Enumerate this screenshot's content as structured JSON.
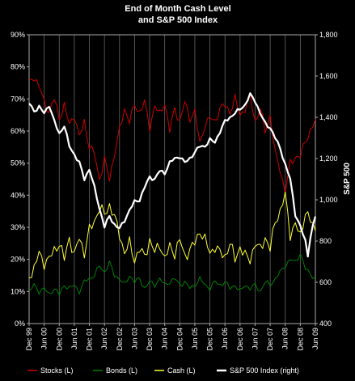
{
  "chart_data": {
    "type": "line",
    "title_line1": "End of Month Cash Level",
    "title_line2": "and S&P 500 Index",
    "xlabel": "",
    "ylabel_left": "",
    "ylabel_right": "S&P 500",
    "left_axis": {
      "min": 0,
      "max": 90,
      "step": 10,
      "suffix": "%"
    },
    "right_axis": {
      "min": 400,
      "max": 1800,
      "step": 200
    },
    "x_ticks": [
      "Dec 99",
      "Jun 00",
      "Dec 00",
      "Jun 01",
      "Dec 01",
      "Jun 02",
      "Dec 02",
      "Jun 03",
      "Dec 03",
      "Jun 04",
      "Dec 04",
      "Jun 05",
      "Dec 05",
      "Jun 06",
      "Dec 06",
      "Jun 07",
      "Dec 07",
      "Jun 08",
      "Dec 08",
      "Jun 09"
    ],
    "grid": "vertical",
    "legend_position": "bottom",
    "series": [
      {
        "name": "Stocks (L)",
        "color": "#cc0000",
        "axis": "left",
        "keypoints": [
          [
            0,
            75
          ],
          [
            2,
            77
          ],
          [
            4,
            74
          ],
          [
            6,
            69
          ],
          [
            8,
            66
          ],
          [
            10,
            70
          ],
          [
            12,
            64
          ],
          [
            14,
            68
          ],
          [
            16,
            62
          ],
          [
            18,
            65
          ],
          [
            20,
            58
          ],
          [
            22,
            63
          ],
          [
            24,
            55
          ],
          [
            26,
            53
          ],
          [
            28,
            45
          ],
          [
            30,
            51
          ],
          [
            32,
            45
          ],
          [
            34,
            53
          ],
          [
            36,
            60
          ],
          [
            38,
            67
          ],
          [
            40,
            63
          ],
          [
            42,
            68
          ],
          [
            44,
            66
          ],
          [
            46,
            69
          ],
          [
            48,
            61
          ],
          [
            50,
            68
          ],
          [
            52,
            65
          ],
          [
            54,
            69
          ],
          [
            56,
            60
          ],
          [
            58,
            67
          ],
          [
            60,
            63
          ],
          [
            62,
            69
          ],
          [
            64,
            64
          ],
          [
            66,
            66
          ],
          [
            68,
            56
          ],
          [
            70,
            62
          ],
          [
            72,
            64
          ],
          [
            74,
            63
          ],
          [
            76,
            67
          ],
          [
            78,
            68
          ],
          [
            80,
            66
          ],
          [
            82,
            70
          ],
          [
            84,
            65
          ],
          [
            86,
            67
          ],
          [
            88,
            71
          ],
          [
            90,
            63
          ],
          [
            92,
            67
          ],
          [
            94,
            60
          ],
          [
            96,
            65
          ],
          [
            98,
            53
          ],
          [
            100,
            48
          ],
          [
            102,
            41
          ],
          [
            104,
            50
          ],
          [
            106,
            52
          ],
          [
            108,
            52
          ],
          [
            110,
            57
          ],
          [
            114,
            63
          ]
        ]
      },
      {
        "name": "Bonds (L)",
        "color": "#008000",
        "axis": "left",
        "keypoints": [
          [
            0,
            10
          ],
          [
            2,
            12
          ],
          [
            4,
            10
          ],
          [
            6,
            11
          ],
          [
            8,
            9
          ],
          [
            10,
            11
          ],
          [
            12,
            9
          ],
          [
            14,
            12
          ],
          [
            16,
            11
          ],
          [
            18,
            12
          ],
          [
            20,
            10
          ],
          [
            22,
            13
          ],
          [
            24,
            14
          ],
          [
            26,
            15
          ],
          [
            28,
            18
          ],
          [
            30,
            16
          ],
          [
            32,
            19
          ],
          [
            34,
            15
          ],
          [
            36,
            14
          ],
          [
            38,
            12
          ],
          [
            40,
            15
          ],
          [
            42,
            13
          ],
          [
            44,
            14
          ],
          [
            46,
            11
          ],
          [
            48,
            13
          ],
          [
            50,
            12
          ],
          [
            52,
            14
          ],
          [
            54,
            12
          ],
          [
            56,
            13
          ],
          [
            58,
            14
          ],
          [
            60,
            12
          ],
          [
            62,
            13
          ],
          [
            64,
            11
          ],
          [
            66,
            12
          ],
          [
            68,
            14
          ],
          [
            70,
            12
          ],
          [
            72,
            11
          ],
          [
            74,
            13
          ],
          [
            76,
            12
          ],
          [
            78,
            13
          ],
          [
            80,
            11
          ],
          [
            82,
            12
          ],
          [
            84,
            10
          ],
          [
            86,
            12
          ],
          [
            88,
            11
          ],
          [
            90,
            12
          ],
          [
            92,
            10
          ],
          [
            94,
            13
          ],
          [
            96,
            12
          ],
          [
            98,
            14
          ],
          [
            100,
            16
          ],
          [
            102,
            18
          ],
          [
            104,
            20
          ],
          [
            106,
            19
          ],
          [
            108,
            22
          ],
          [
            110,
            17
          ],
          [
            114,
            14
          ]
        ]
      },
      {
        "name": "Cash (L)",
        "color": "#ffff33",
        "axis": "left",
        "keypoints": [
          [
            0,
            15
          ],
          [
            2,
            17
          ],
          [
            4,
            22
          ],
          [
            6,
            19
          ],
          [
            8,
            20
          ],
          [
            10,
            23
          ],
          [
            12,
            25
          ],
          [
            14,
            20
          ],
          [
            16,
            27
          ],
          [
            18,
            21
          ],
          [
            20,
            27
          ],
          [
            22,
            22
          ],
          [
            24,
            29
          ],
          [
            26,
            32
          ],
          [
            28,
            36
          ],
          [
            30,
            34
          ],
          [
            32,
            37
          ],
          [
            34,
            33
          ],
          [
            36,
            28
          ],
          [
            38,
            22
          ],
          [
            40,
            25
          ],
          [
            42,
            20
          ],
          [
            44,
            23
          ],
          [
            46,
            21
          ],
          [
            48,
            26
          ],
          [
            50,
            22
          ],
          [
            52,
            25
          ],
          [
            54,
            20
          ],
          [
            56,
            24
          ],
          [
            58,
            22
          ],
          [
            60,
            26
          ],
          [
            62,
            21
          ],
          [
            64,
            23
          ],
          [
            66,
            25
          ],
          [
            68,
            29
          ],
          [
            70,
            26
          ],
          [
            72,
            22
          ],
          [
            74,
            24
          ],
          [
            76,
            22
          ],
          [
            78,
            21
          ],
          [
            80,
            25
          ],
          [
            82,
            20
          ],
          [
            84,
            24
          ],
          [
            86,
            21
          ],
          [
            88,
            20
          ],
          [
            90,
            25
          ],
          [
            92,
            23
          ],
          [
            94,
            27
          ],
          [
            96,
            23
          ],
          [
            98,
            32
          ],
          [
            100,
            35
          ],
          [
            102,
            40
          ],
          [
            104,
            28
          ],
          [
            106,
            31
          ],
          [
            108,
            27
          ],
          [
            110,
            35
          ],
          [
            114,
            29
          ]
        ]
      },
      {
        "name": "S&P 500 Index (right)",
        "color": "#ffffff",
        "axis": "right",
        "keypoints": [
          [
            0,
            1469
          ],
          [
            2,
            1430
          ],
          [
            4,
            1450
          ],
          [
            6,
            1420
          ],
          [
            8,
            1460
          ],
          [
            10,
            1380
          ],
          [
            12,
            1320
          ],
          [
            14,
            1360
          ],
          [
            16,
            1260
          ],
          [
            18,
            1220
          ],
          [
            20,
            1180
          ],
          [
            22,
            1100
          ],
          [
            24,
            1150
          ],
          [
            26,
            1060
          ],
          [
            28,
            960
          ],
          [
            30,
            870
          ],
          [
            32,
            920
          ],
          [
            34,
            880
          ],
          [
            36,
            860
          ],
          [
            38,
            900
          ],
          [
            40,
            950
          ],
          [
            42,
            990
          ],
          [
            44,
            1000
          ],
          [
            46,
            1060
          ],
          [
            48,
            1110
          ],
          [
            50,
            1100
          ],
          [
            52,
            1140
          ],
          [
            54,
            1130
          ],
          [
            56,
            1180
          ],
          [
            58,
            1200
          ],
          [
            60,
            1210
          ],
          [
            62,
            1180
          ],
          [
            64,
            1200
          ],
          [
            66,
            1230
          ],
          [
            68,
            1260
          ],
          [
            70,
            1260
          ],
          [
            72,
            1290
          ],
          [
            74,
            1280
          ],
          [
            76,
            1330
          ],
          [
            78,
            1380
          ],
          [
            80,
            1400
          ],
          [
            82,
            1420
          ],
          [
            84,
            1440
          ],
          [
            86,
            1460
          ],
          [
            88,
            1510
          ],
          [
            90,
            1480
          ],
          [
            92,
            1420
          ],
          [
            94,
            1370
          ],
          [
            96,
            1350
          ],
          [
            98,
            1300
          ],
          [
            100,
            1250
          ],
          [
            102,
            1170
          ],
          [
            104,
            1100
          ],
          [
            106,
            930
          ],
          [
            108,
            870
          ],
          [
            110,
            800
          ],
          [
            111,
            730
          ],
          [
            112,
            820
          ],
          [
            113,
            870
          ],
          [
            114,
            920
          ]
        ]
      }
    ]
  }
}
